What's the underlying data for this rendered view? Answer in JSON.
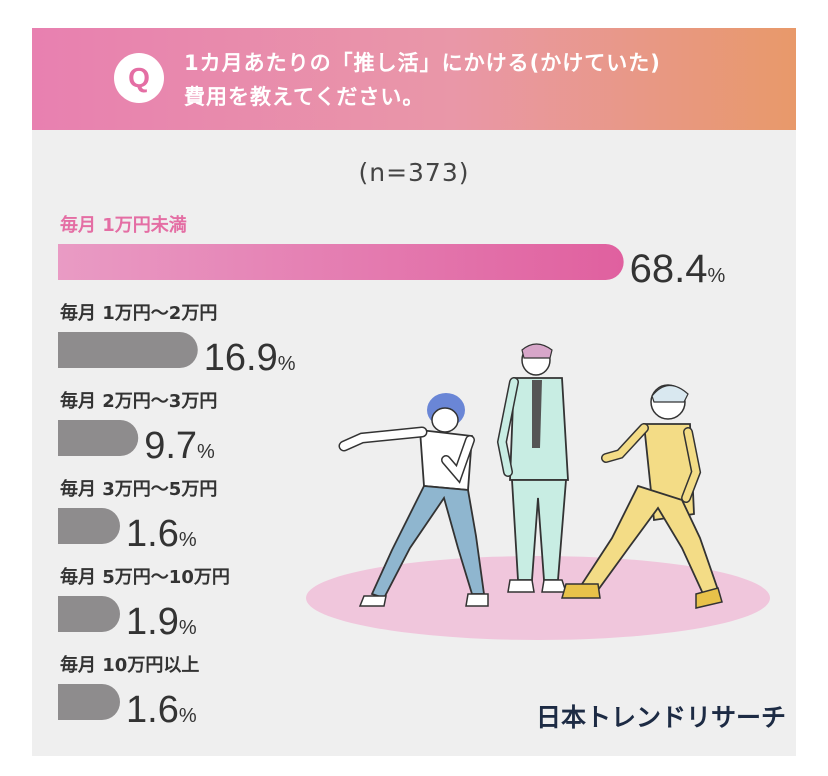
{
  "question": {
    "badge": "Q",
    "line1": "1カ月あたりの「推し活」にかける(かけていた)",
    "line2": "費用を教えてください。"
  },
  "sample_size": "(n=373)",
  "logo_text": "日本トレンドリサーチ",
  "colors": {
    "highlight_bar_start": "#e99bc4",
    "highlight_bar_end": "#e0609f",
    "highlight_label": "#e46ea4",
    "other_bar": "#8e8c8d",
    "text": "#333333",
    "card_bg": "#efefef"
  },
  "chart_data": {
    "type": "bar",
    "orientation": "horizontal",
    "title": "1カ月あたりの「推し活」にかける(かけていた)費用を教えてください。",
    "unit": "%",
    "categories": [
      "毎月 1万円未満",
      "毎月 1万円〜2万円",
      "毎月 2万円〜3万円",
      "毎月 3万円〜5万円",
      "毎月 5万円〜10万円",
      "毎月 10万円以上"
    ],
    "values": [
      68.4,
      16.9,
      9.7,
      1.6,
      1.9,
      1.6
    ],
    "value_labels": [
      "68.4",
      "16.9",
      "9.7",
      "1.6",
      "1.9",
      "1.6"
    ],
    "highlight_index": 0,
    "xlim": [
      0,
      100
    ],
    "grid": false,
    "legend": "none"
  }
}
